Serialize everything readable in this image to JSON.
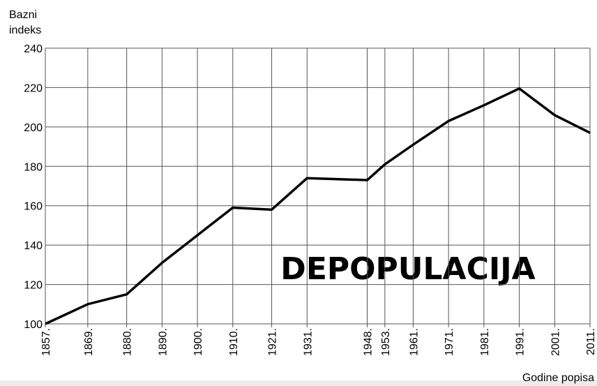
{
  "chart_data": {
    "type": "line",
    "y_label": [
      "Bazni",
      "indeks"
    ],
    "x_label": "Godine popisa",
    "annotation": "DEPOPULACIJA",
    "x": [
      1857,
      1869,
      1880,
      1890,
      1900,
      1910,
      1921,
      1931,
      1948,
      1953,
      1961,
      1971,
      1981,
      1991,
      2001,
      2011
    ],
    "series": [
      {
        "name": "Bazni indeks",
        "color": "#000000",
        "values": [
          100,
          110,
          115,
          131,
          145,
          159,
          158,
          174,
          173,
          181,
          191,
          203,
          211,
          219.5,
          206,
          197
        ]
      }
    ],
    "xlim": [
      1857,
      2011
    ],
    "xticks": [
      {
        "value": 1857,
        "label": "1857."
      },
      {
        "value": 1869,
        "label": "1869."
      },
      {
        "value": 1880,
        "label": "1880."
      },
      {
        "value": 1890,
        "label": "1890."
      },
      {
        "value": 1900,
        "label": "1900."
      },
      {
        "value": 1910,
        "label": "1910."
      },
      {
        "value": 1921,
        "label": "1921."
      },
      {
        "value": 1931,
        "label": "1931."
      },
      {
        "value": 1948,
        "label": "1948."
      },
      {
        "value": 1953,
        "label": "1953."
      },
      {
        "value": 1961,
        "label": "1961."
      },
      {
        "value": 1971,
        "label": "1971."
      },
      {
        "value": 1981,
        "label": "1981."
      },
      {
        "value": 1991,
        "label": "1991."
      },
      {
        "value": 2001,
        "label": "2001."
      },
      {
        "value": 2011,
        "label": "2011."
      }
    ],
    "ylim": [
      100,
      240
    ],
    "yticks": [
      100,
      120,
      140,
      160,
      180,
      200,
      220,
      240
    ],
    "grid": true
  }
}
